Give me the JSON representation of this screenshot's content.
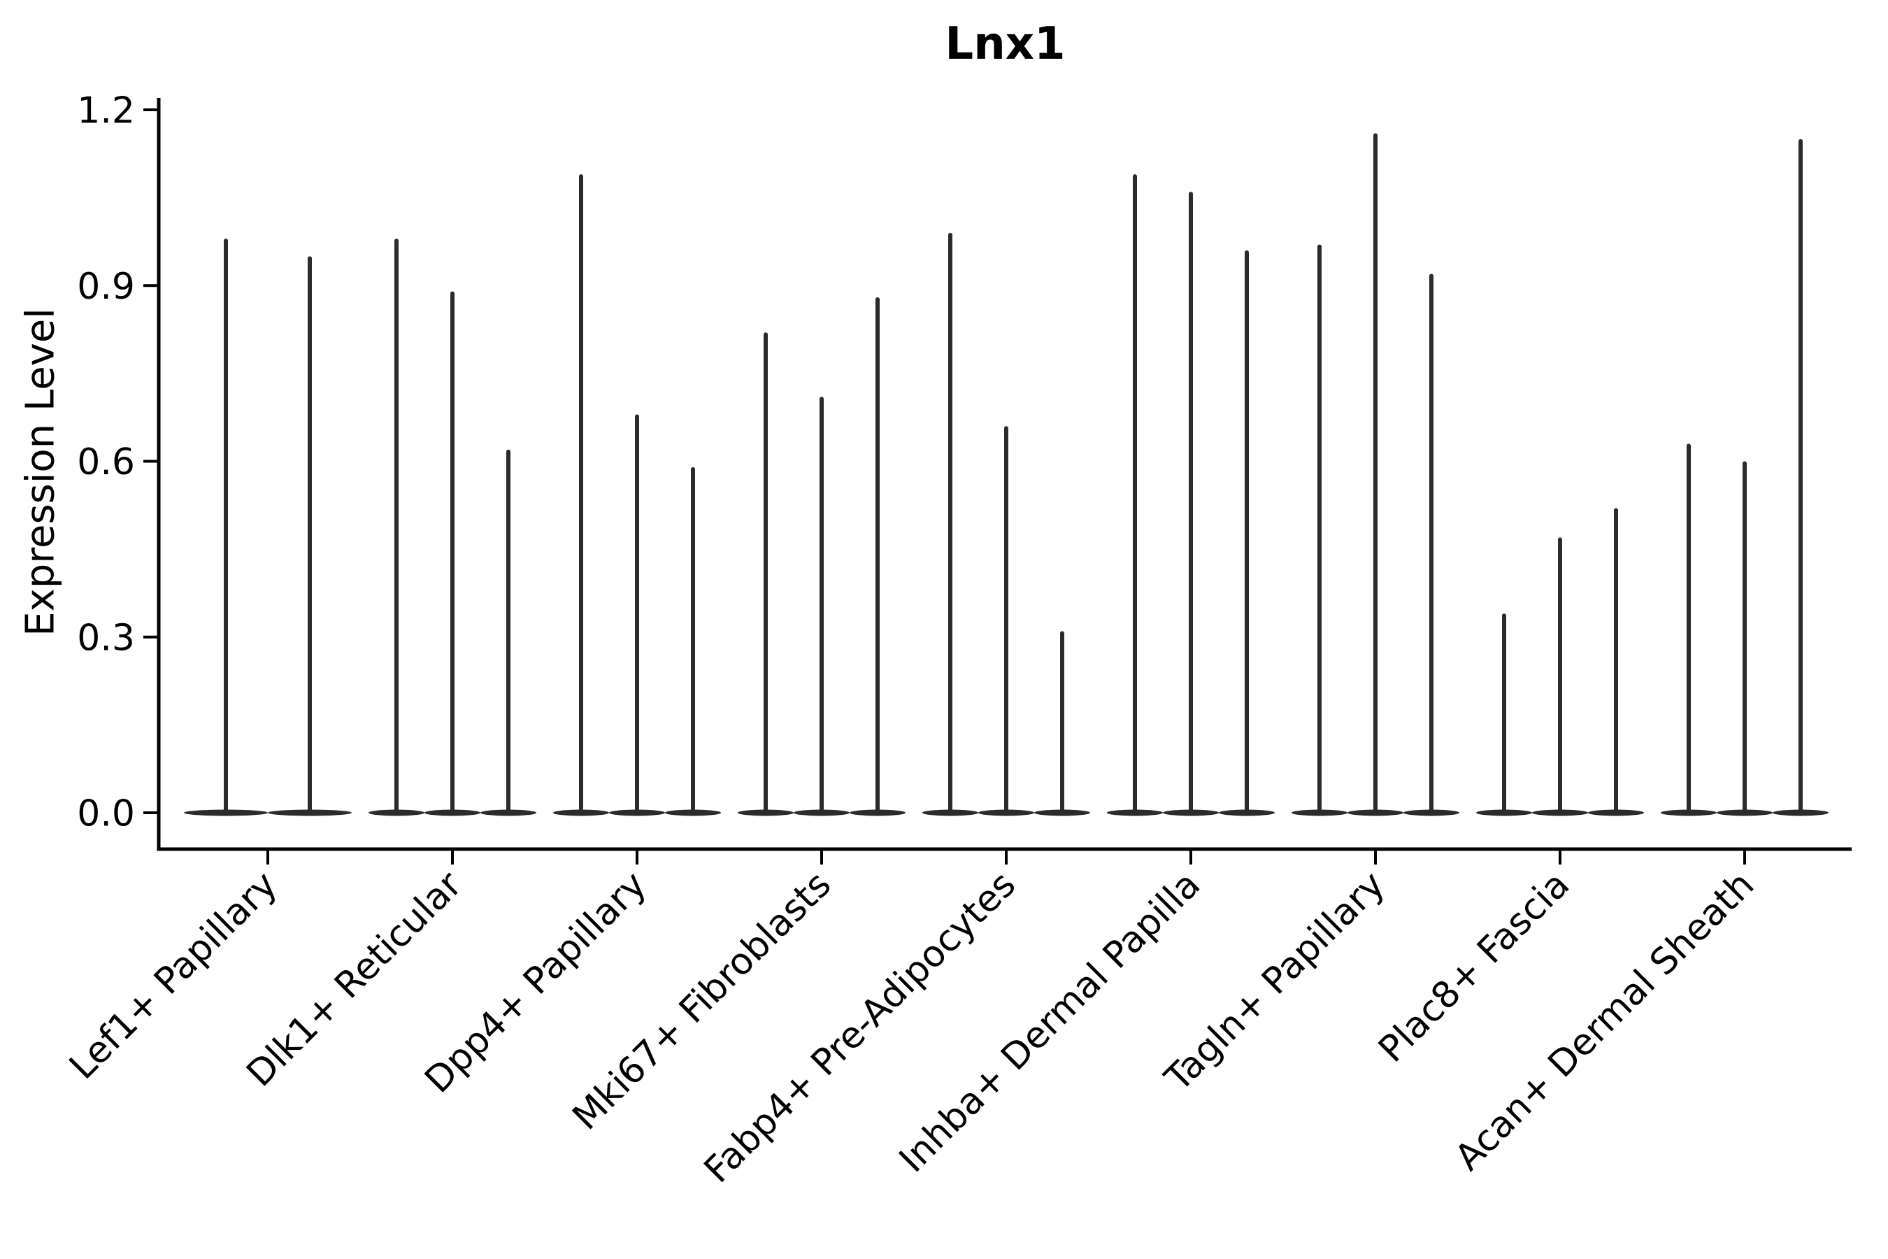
{
  "chart_data": {
    "type": "violin",
    "title": "Lnx1",
    "ylabel": "Expression Level",
    "xlabel": "",
    "ylim": [
      -0.062,
      1.217
    ],
    "yticks": [
      0.0,
      0.3,
      0.6,
      0.9,
      1.2
    ],
    "ytick_labels": [
      "0.0",
      "0.3",
      "0.6",
      "0.9",
      "1.2"
    ],
    "grid": false,
    "legend": "none",
    "categories": [
      "Lef1+ Papillary",
      "Dlk1+ Reticular",
      "Dpp4+ Papillary",
      "Mki67+ Fibroblasts",
      "Fabp4+ Pre-Adipocytes",
      "Inhba+ Dermal Papilla",
      "Tagln+ Papillary",
      "Plac8+ Fascia",
      "Acan+ Dermal Sheath"
    ],
    "groups": [
      {
        "label": "Lef1+ Papillary",
        "violin_peaks": [
          0.98,
          0.95
        ]
      },
      {
        "label": "Dlk1+ Reticular",
        "violin_peaks": [
          0.98,
          0.89,
          0.62
        ]
      },
      {
        "label": "Dpp4+ Papillary",
        "violin_peaks": [
          1.09,
          0.68,
          0.59
        ]
      },
      {
        "label": "Mki67+ Fibroblasts",
        "violin_peaks": [
          0.82,
          0.71,
          0.88
        ]
      },
      {
        "label": "Fabp4+ Pre-Adipocytes",
        "violin_peaks": [
          0.99,
          0.66,
          0.31
        ]
      },
      {
        "label": "Inhba+ Dermal Papilla",
        "violin_peaks": [
          1.09,
          1.06,
          0.96
        ]
      },
      {
        "label": "Tagln+ Papillary",
        "violin_peaks": [
          0.97,
          1.16,
          0.92
        ]
      },
      {
        "label": "Plac8+ Fascia",
        "violin_peaks": [
          0.34,
          0.47,
          0.52
        ]
      },
      {
        "label": "Acan+ Dermal Sheath",
        "violin_peaks": [
          0.63,
          0.6,
          1.15
        ]
      }
    ],
    "violin_description": "Each violin is a very thin spike rising from a flat baseline at expression 0, indicating sparse expression; peak value listed per violin."
  },
  "colors": {
    "violin": "#2b2b2b",
    "axis": "#000000",
    "text": "#000000",
    "background": "#ffffff"
  }
}
